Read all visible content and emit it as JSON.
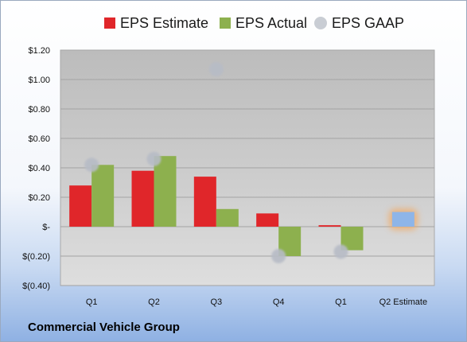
{
  "chart_data": {
    "type": "bar",
    "categories": [
      "Q1",
      "Q2",
      "Q3",
      "Q4",
      "Q1",
      "Q2 Estimate"
    ],
    "series": [
      {
        "name": "EPS Estimate",
        "color": "#e0262a",
        "values": [
          0.28,
          0.38,
          0.34,
          0.09,
          0.01,
          null
        ]
      },
      {
        "name": "EPS Actual",
        "color": "#8db04e",
        "values": [
          0.42,
          0.48,
          0.12,
          -0.2,
          -0.16,
          null
        ]
      },
      {
        "name": "EPS GAAP",
        "color": "#b7bcc6",
        "values": [
          0.42,
          0.46,
          1.07,
          -0.2,
          -0.17,
          null
        ],
        "marker": "circle"
      }
    ],
    "forecast": {
      "category": "Q2 Estimate",
      "value": 0.1,
      "color": "#8eb5e8",
      "glow": "#f2a860"
    },
    "yticks": [
      {
        "value": 1.2,
        "label": "$1.20"
      },
      {
        "value": 1.0,
        "label": "$1.00"
      },
      {
        "value": 0.8,
        "label": "$0.80"
      },
      {
        "value": 0.6,
        "label": "$0.60"
      },
      {
        "value": 0.4,
        "label": "$0.40"
      },
      {
        "value": 0.2,
        "label": "$0.20"
      },
      {
        "value": 0.0,
        "label": "$-"
      },
      {
        "value": -0.2,
        "label": "$(0.20)"
      },
      {
        "value": -0.4,
        "label": "$(0.40)"
      }
    ],
    "ylim": [
      -0.4,
      1.2
    ],
    "grid": true,
    "legend_position": "top"
  },
  "company": "Commercial Vehicle Group"
}
